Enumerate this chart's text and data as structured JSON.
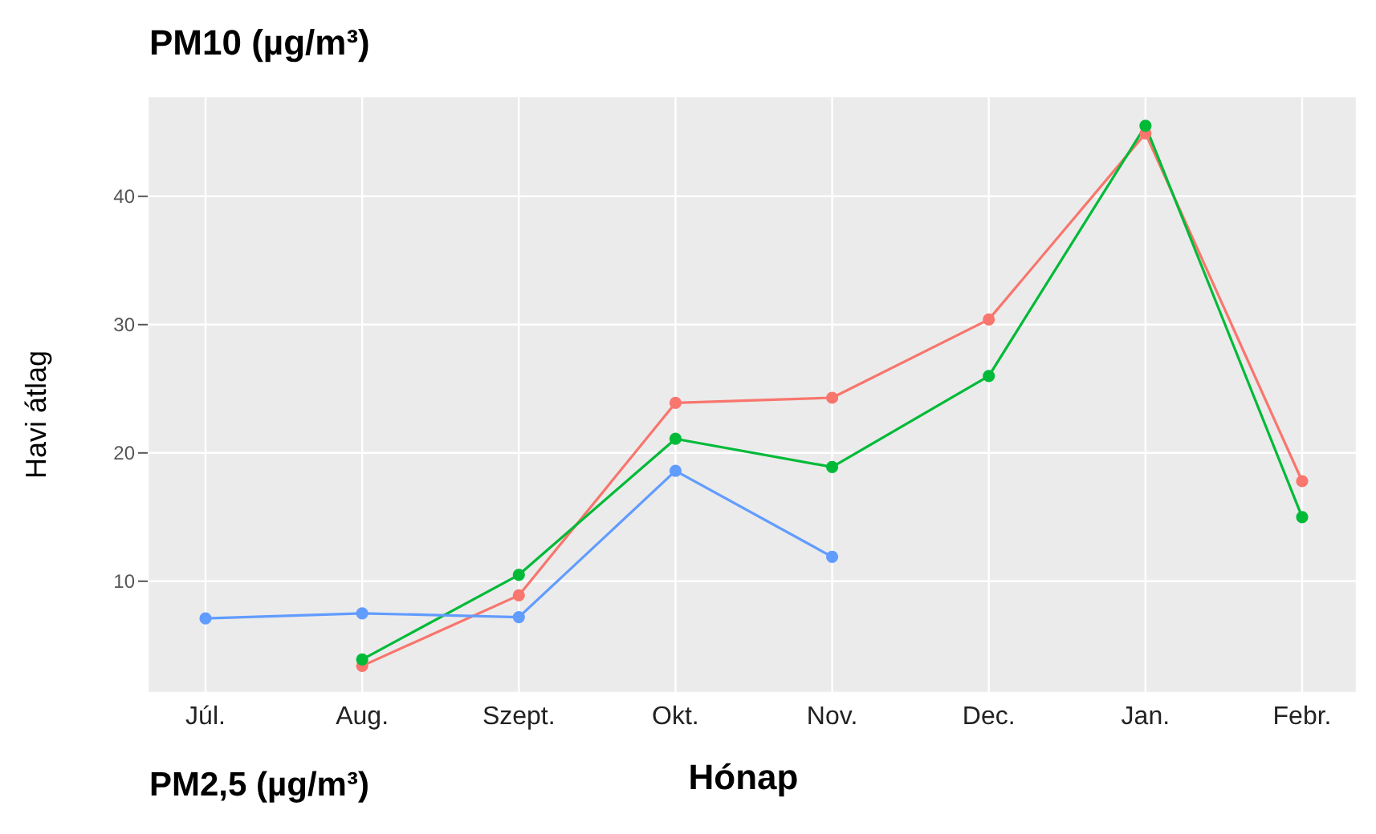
{
  "chart_data": {
    "type": "line",
    "title": "PM10 (µg/m³)",
    "xlabel": "Hónap",
    "ylabel": "Havi átlag",
    "annotations": [
      "PM2,5 (µg/m³)"
    ],
    "categories": [
      "Júl.",
      "Aug.",
      "Szept.",
      "Okt.",
      "Nov.",
      "Dec.",
      "Jan.",
      "Febr."
    ],
    "series": [
      {
        "color": "#f8766d",
        "values": [
          null,
          3.4,
          8.9,
          23.9,
          24.3,
          30.4,
          44.9,
          17.8
        ]
      },
      {
        "color": "#00ba38",
        "values": [
          null,
          3.9,
          10.5,
          21.1,
          18.9,
          26.0,
          45.5,
          15.0
        ]
      },
      {
        "color": "#619cff",
        "values": [
          7.1,
          7.5,
          7.2,
          18.6,
          11.9,
          null,
          null,
          null
        ]
      }
    ],
    "ylim": [
      1.3,
      47.8
    ],
    "yticks": [
      10,
      20,
      30,
      40
    ],
    "grid": true,
    "marker": "circle",
    "line_style": "solid"
  }
}
